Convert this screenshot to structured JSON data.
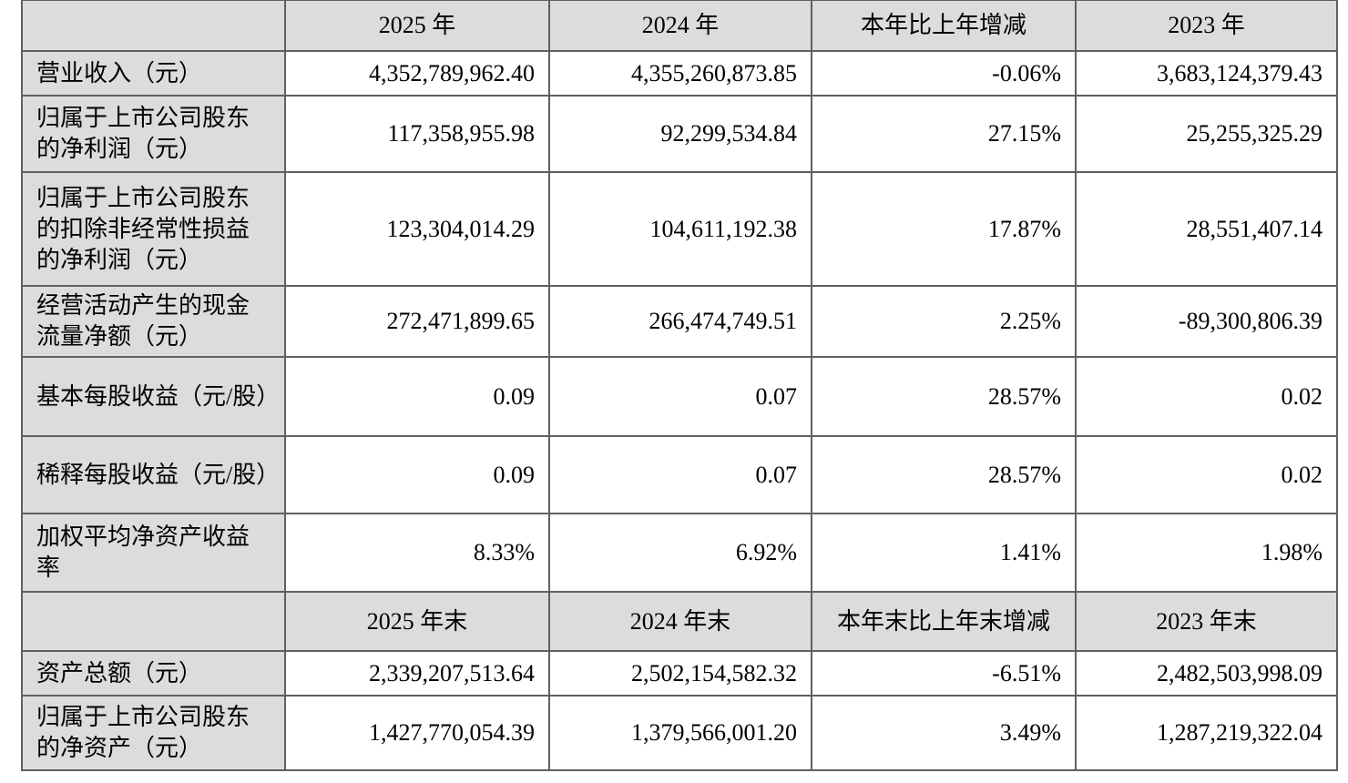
{
  "table": {
    "header_period": {
      "blank": "",
      "y2025": "2025 年",
      "y2024": "2024 年",
      "change": "本年比上年增减",
      "y2023": "2023 年"
    },
    "header_end_of_period": {
      "blank": "",
      "y2025": "2025 年末",
      "y2024": "2024 年末",
      "change": "本年末比上年末增减",
      "y2023": "2023 年末"
    },
    "rows": [
      {
        "label": "营业收入（元）",
        "v2025": "4,352,789,962.40",
        "v2024": "4,355,260,873.85",
        "change": "-0.06%",
        "v2023": "3,683,124,379.43"
      },
      {
        "label": "归属于上市公司股东的净利润（元）",
        "v2025": "117,358,955.98",
        "v2024": "92,299,534.84",
        "change": "27.15%",
        "v2023": "25,255,325.29"
      },
      {
        "label": "归属于上市公司股东的扣除非经常性损益的净利润（元）",
        "v2025": "123,304,014.29",
        "v2024": "104,611,192.38",
        "change": "17.87%",
        "v2023": "28,551,407.14"
      },
      {
        "label": "经营活动产生的现金流量净额（元）",
        "v2025": "272,471,899.65",
        "v2024": "266,474,749.51",
        "change": "2.25%",
        "v2023": "-89,300,806.39"
      },
      {
        "label": "基本每股收益（元/股）",
        "v2025": "0.09",
        "v2024": "0.07",
        "change": "28.57%",
        "v2023": "0.02"
      },
      {
        "label": "稀释每股收益（元/股）",
        "v2025": "0.09",
        "v2024": "0.07",
        "change": "28.57%",
        "v2023": "0.02"
      },
      {
        "label": "加权平均净资产收益率",
        "v2025": "8.33%",
        "v2024": "6.92%",
        "change": "1.41%",
        "v2023": "1.98%"
      },
      {
        "label": "资产总额（元）",
        "v2025": "2,339,207,513.64",
        "v2024": "2,502,154,582.32",
        "change": "-6.51%",
        "v2023": "2,482,503,998.09"
      },
      {
        "label": "归属于上市公司股东的净资产（元）",
        "v2025": "1,427,770,054.39",
        "v2024": "1,379,566,001.20",
        "change": "3.49%",
        "v2023": "1,287,219,322.04"
      }
    ],
    "colors": {
      "header_fill": "#dcdcdc",
      "label_fill": "#dcdcdc",
      "border": "#606060",
      "text": "#000000"
    }
  }
}
